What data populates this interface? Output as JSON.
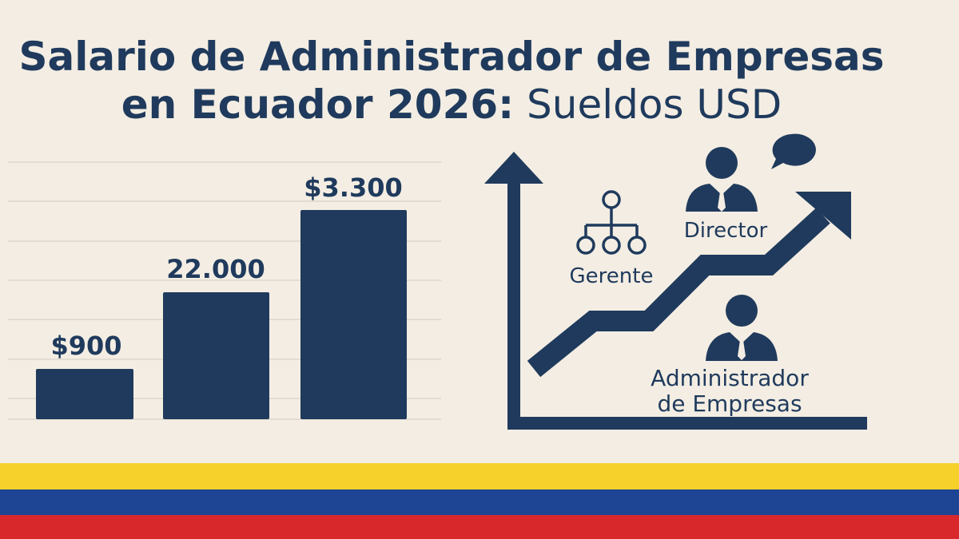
{
  "title": {
    "line1": "Salario de Administrador de Empresas",
    "line2_bold": "en Ecuador 2026:",
    "line2_light": "Sueldos USD"
  },
  "bar_labels": [
    "$900",
    "22.000",
    "$3.300"
  ],
  "roles": {
    "gerente": "Gerente",
    "director": "Director",
    "administrador": [
      "Administrador",
      "de Empresas"
    ]
  }
}
